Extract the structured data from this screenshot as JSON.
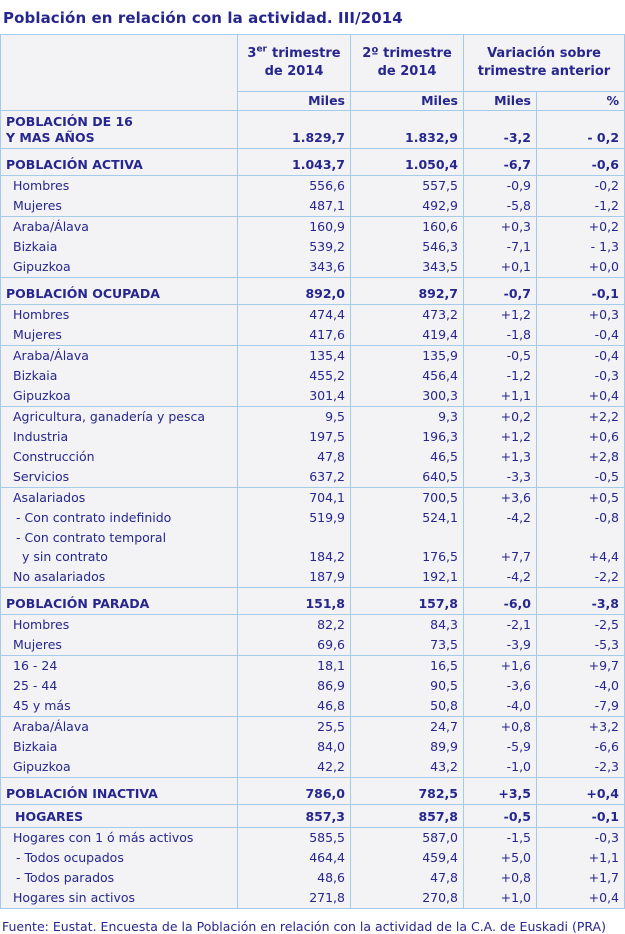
{
  "title": "Población en relación con la actividad. III/2014",
  "footer": "Fuente: Eustat. Encuesta de la Población en relación con la actividad de la C.A. de Euskadi (PRA)",
  "colors": {
    "text_navy": "#26268E",
    "border_light_blue": "#A4CBE8",
    "cell_background": "#F3F3F5",
    "page_background": "#FFFFFF"
  },
  "table": {
    "header": {
      "q3": {
        "num": "3",
        "sup": "er",
        "word": "trimestre",
        "line2": "de 2014"
      },
      "q2": {
        "line1": "2º trimestre",
        "line2": "de 2014"
      },
      "variation": {
        "line1": "Variación sobre",
        "line2": "trimestre anterior"
      },
      "units": [
        "Miles",
        "Miles",
        "Miles",
        "%"
      ]
    },
    "rows": [
      {
        "label": "POBLACIÓN DE 16",
        "label2": "Y MAS AÑOS",
        "q3": "1.829,7",
        "q2": "1.832,9",
        "vm": "-3,2",
        "vp": "- 0,2",
        "style": "section16",
        "top": false
      },
      {
        "label": "POBLACIÓN ACTIVA",
        "q3": "1.043,7",
        "q2": "1.050,4",
        "vm": "-6,7",
        "vp": "-0,6",
        "style": "section",
        "top": true
      },
      {
        "label": "Hombres",
        "q3": "556,6",
        "q2": "557,5",
        "vm": "-0,9",
        "vp": "-0,2",
        "style": "item",
        "top": true
      },
      {
        "label": "Mujeres",
        "q3": "487,1",
        "q2": "492,9",
        "vm": "-5,8",
        "vp": "-1,2",
        "style": "item",
        "top": false
      },
      {
        "label": "Araba/Álava",
        "q3": "160,9",
        "q2": "160,6",
        "vm": "+0,3",
        "vp": "+0,2",
        "style": "item",
        "top": true
      },
      {
        "label": "Bizkaia",
        "q3": "539,2",
        "q2": "546,3",
        "vm": "-7,1",
        "vp": "- 1,3",
        "style": "item",
        "top": false
      },
      {
        "label": "Gipuzkoa",
        "q3": "343,6",
        "q2": "343,5",
        "vm": "+0,1",
        "vp": "+0,0",
        "style": "item",
        "top": false
      },
      {
        "label": "POBLACIÓN OCUPADA",
        "q3": "892,0",
        "q2": "892,7",
        "vm": "-0,7",
        "vp": "-0,1",
        "style": "section",
        "top": true
      },
      {
        "label": "Hombres",
        "q3": "474,4",
        "q2": "473,2",
        "vm": "+1,2",
        "vp": "+0,3",
        "style": "item",
        "top": true
      },
      {
        "label": "Mujeres",
        "q3": "417,6",
        "q2": "419,4",
        "vm": "-1,8",
        "vp": "-0,4",
        "style": "item",
        "top": false
      },
      {
        "label": "Araba/Álava",
        "q3": "135,4",
        "q2": "135,9",
        "vm": "-0,5",
        "vp": "-0,4",
        "style": "item",
        "top": true
      },
      {
        "label": "Bizkaia",
        "q3": "455,2",
        "q2": "456,4",
        "vm": "-1,2",
        "vp": "-0,3",
        "style": "item",
        "top": false
      },
      {
        "label": "Gipuzkoa",
        "q3": "301,4",
        "q2": "300,3",
        "vm": "+1,1",
        "vp": "+0,4",
        "style": "item",
        "top": false
      },
      {
        "label": "Agricultura, ganadería y pesca",
        "q3": "9,5",
        "q2": "9,3",
        "vm": "+0,2",
        "vp": "+2,2",
        "style": "item",
        "top": true
      },
      {
        "label": "Industria",
        "q3": "197,5",
        "q2": "196,3",
        "vm": "+1,2",
        "vp": "+0,6",
        "style": "item",
        "top": false
      },
      {
        "label": "Construcción",
        "q3": "47,8",
        "q2": "46,5",
        "vm": "+1,3",
        "vp": "+2,8",
        "style": "item",
        "top": false
      },
      {
        "label": "Servicios",
        "q3": "637,2",
        "q2": "640,5",
        "vm": "-3,3",
        "vp": "-0,5",
        "style": "item",
        "top": false
      },
      {
        "label": "Asalariados",
        "q3": "704,1",
        "q2": "700,5",
        "vm": "+3,6",
        "vp": "+0,5",
        "style": "item",
        "top": true
      },
      {
        "label": "- Con contrato indefinido",
        "q3": "519,9",
        "q2": "524,1",
        "vm": "-4,2",
        "vp": "-0,8",
        "style": "dash",
        "top": false
      },
      {
        "label": "- Con contrato temporal",
        "label2": "y sin contrato",
        "q3": "184,2",
        "q2": "176,5",
        "vm": "+7,7",
        "vp": "+4,4",
        "style": "dash",
        "top": false
      },
      {
        "label": "No asalariados",
        "q3": "187,9",
        "q2": "192,1",
        "vm": "-4,2",
        "vp": "-2,2",
        "style": "item",
        "top": false
      },
      {
        "label": "POBLACIÓN PARADA",
        "q3": "151,8",
        "q2": "157,8",
        "vm": "-6,0",
        "vp": "-3,8",
        "style": "section",
        "top": true
      },
      {
        "label": "Hombres",
        "q3": "82,2",
        "q2": "84,3",
        "vm": "-2,1",
        "vp": "-2,5",
        "style": "item",
        "top": true
      },
      {
        "label": "Mujeres",
        "q3": "69,6",
        "q2": "73,5",
        "vm": "-3,9",
        "vp": "-5,3",
        "style": "item",
        "top": false
      },
      {
        "label": "16 - 24",
        "q3": "18,1",
        "q2": "16,5",
        "vm": "+1,6",
        "vp": "+9,7",
        "style": "item",
        "top": true
      },
      {
        "label": "25 - 44",
        "q3": "86,9",
        "q2": "90,5",
        "vm": "-3,6",
        "vp": "-4,0",
        "style": "item",
        "top": false
      },
      {
        "label": "45  y más",
        "q3": "46,8",
        "q2": "50,8",
        "vm": "-4,0",
        "vp": "-7,9",
        "style": "item",
        "top": false
      },
      {
        "label": "Araba/Álava",
        "q3": "25,5",
        "q2": "24,7",
        "vm": "+0,8",
        "vp": "+3,2",
        "style": "item",
        "top": true
      },
      {
        "label": "Bizkaia",
        "q3": "84,0",
        "q2": "89,9",
        "vm": "-5,9",
        "vp": "-6,6",
        "style": "item",
        "top": false
      },
      {
        "label": "Gipuzkoa",
        "q3": "42,2",
        "q2": "43,2",
        "vm": "-1,0",
        "vp": "-2,3",
        "style": "item",
        "top": false
      },
      {
        "label": "POBLACIÓN INACTIVA",
        "q3": "786,0",
        "q2": "782,5",
        "vm": "+3,5",
        "vp": "+0,4",
        "style": "section",
        "top": true
      },
      {
        "label": "HOGARES",
        "q3": "857,3",
        "q2": "857,8",
        "vm": "-0,5",
        "vp": "-0,1",
        "style": "subsection",
        "top": true
      },
      {
        "label": "Hogares con 1 ó más activos",
        "q3": "585,5",
        "q2": "587,0",
        "vm": "-1,5",
        "vp": "-0,3",
        "style": "item",
        "top": true
      },
      {
        "label": "- Todos ocupados",
        "q3": "464,4",
        "q2": "459,4",
        "vm": "+5,0",
        "vp": "+1,1",
        "style": "dash",
        "top": false
      },
      {
        "label": "- Todos parados",
        "q3": "48,6",
        "q2": "47,8",
        "vm": "+0,8",
        "vp": "+1,7",
        "style": "dash",
        "top": false
      },
      {
        "label": "Hogares sin activos",
        "q3": "271,8",
        "q2": "270,8",
        "vm": "+1,0",
        "vp": "+0,4",
        "style": "item",
        "top": false
      }
    ]
  }
}
